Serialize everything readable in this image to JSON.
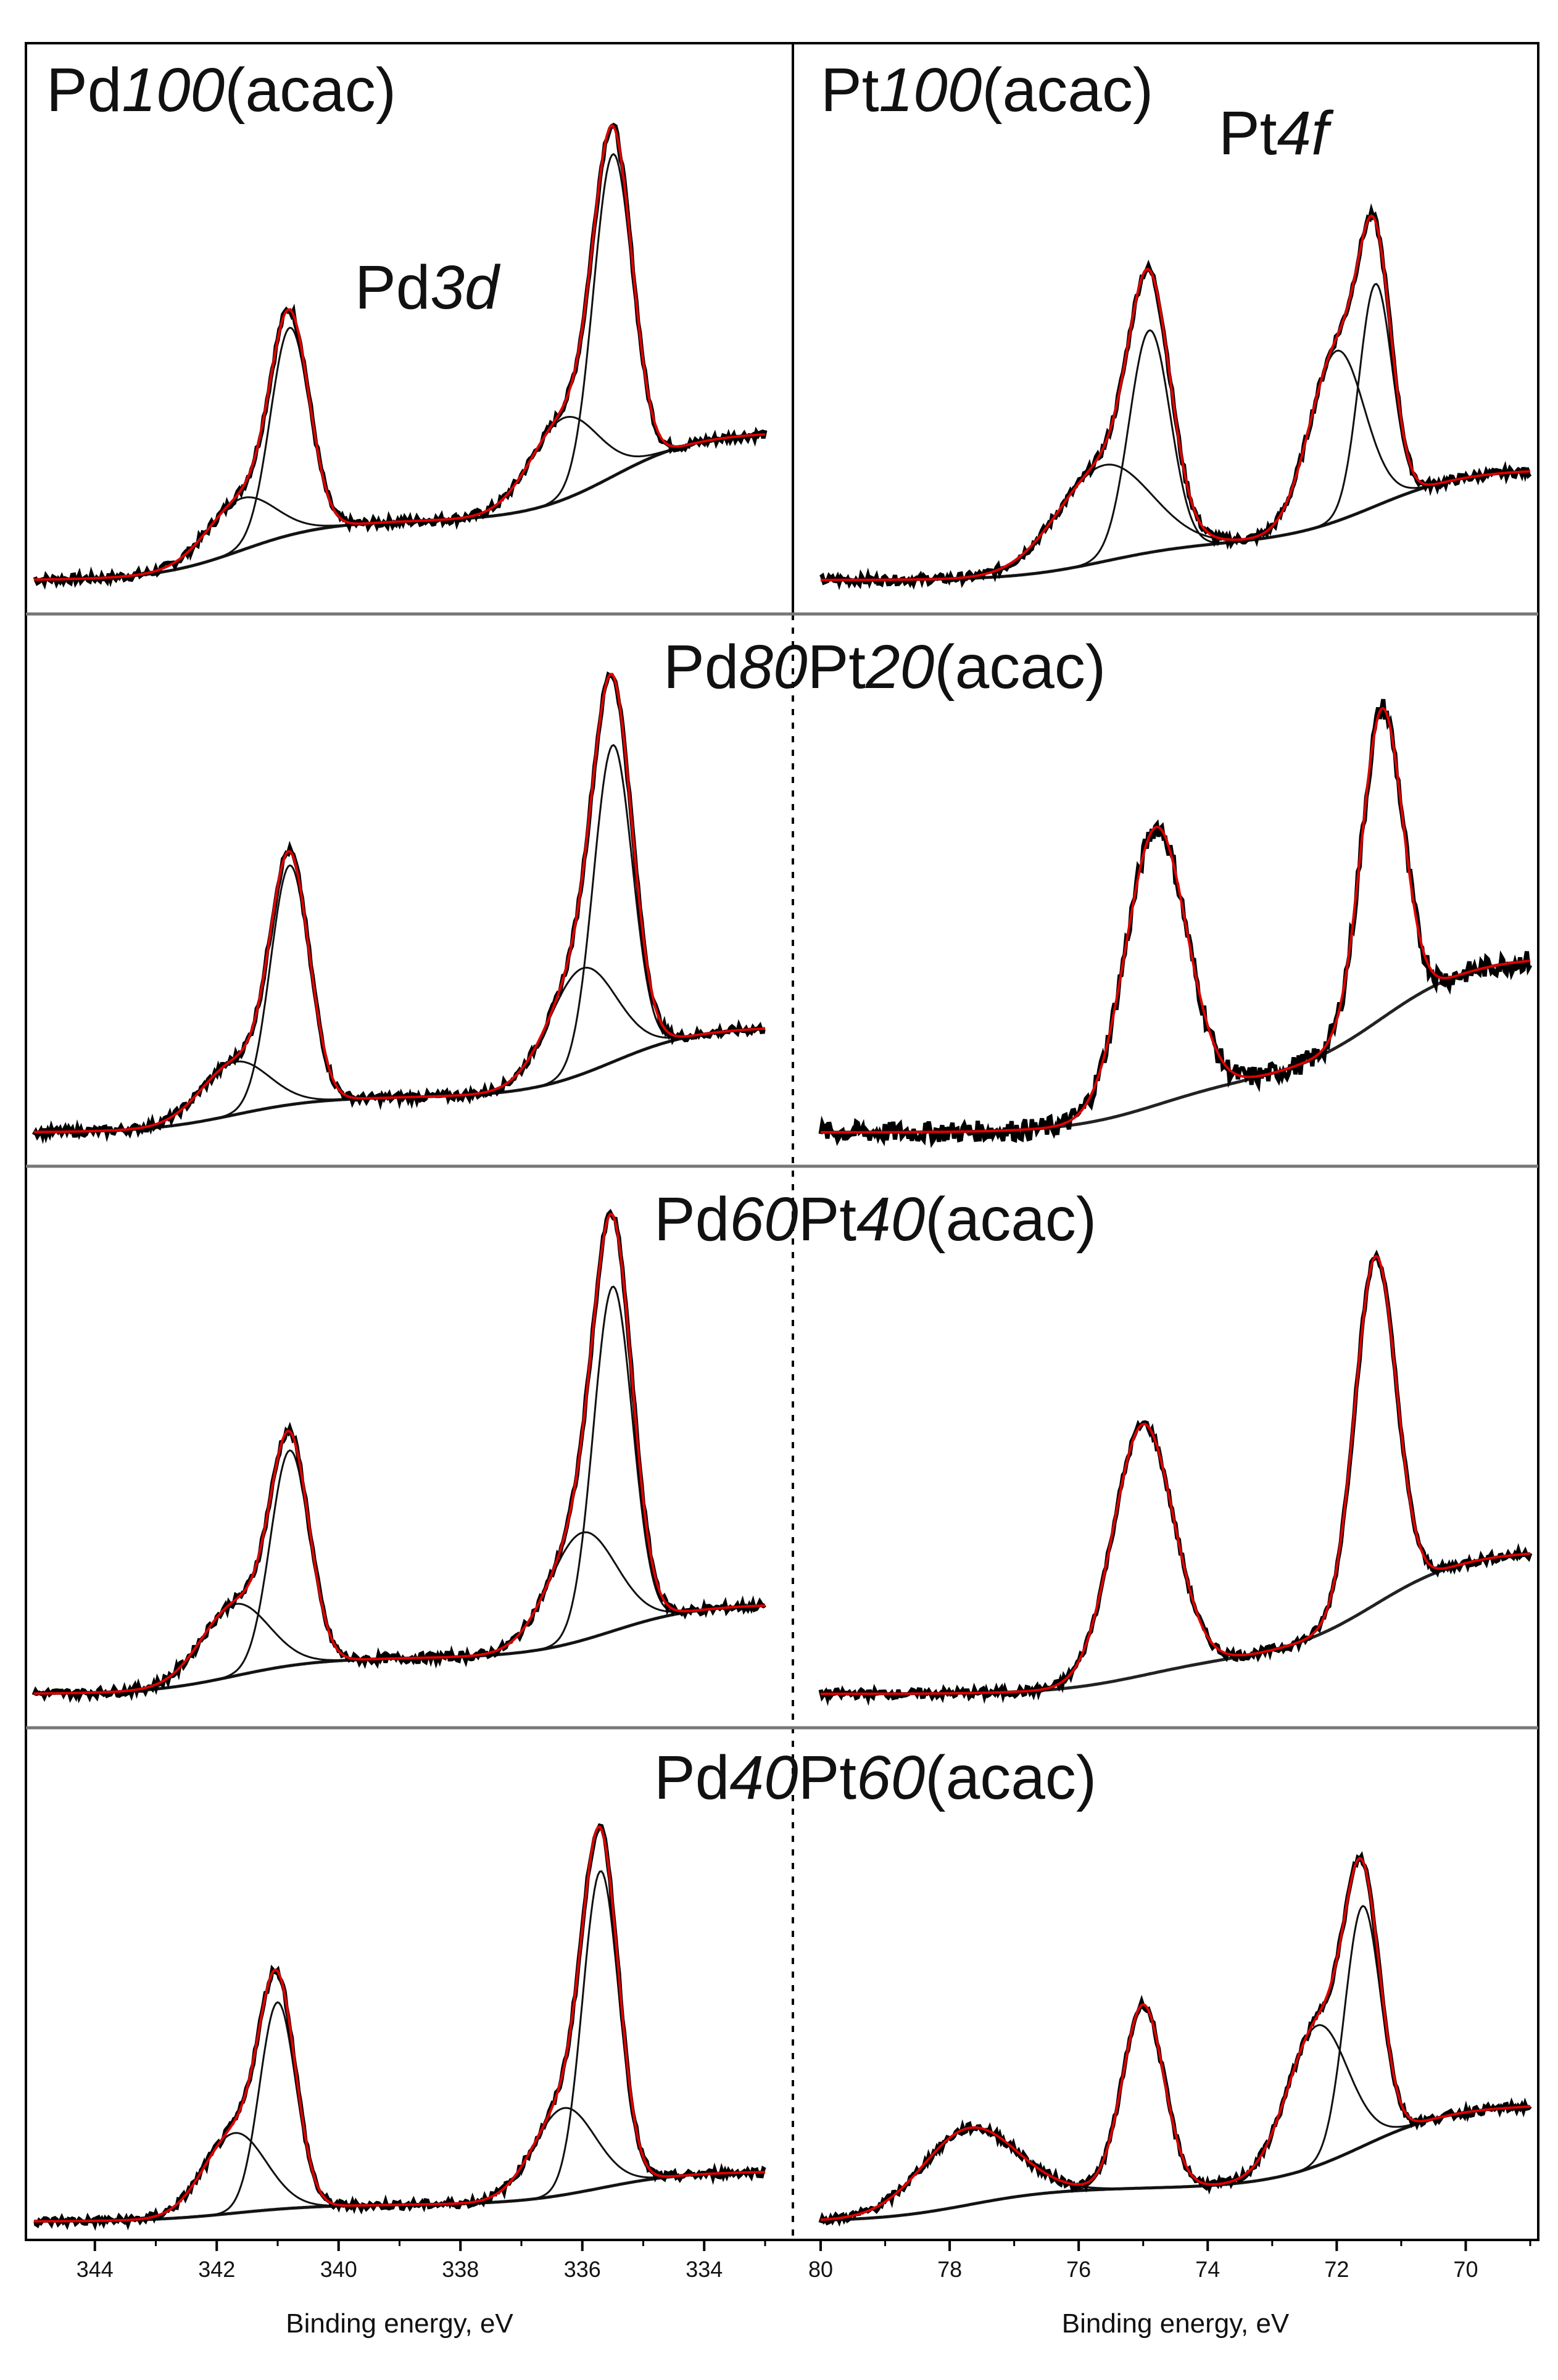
{
  "chart_data": {
    "type": "line",
    "description_free": true,
    "colors": {
      "measured": "#000000",
      "fit": "#e00000",
      "components": "#000000",
      "background": "#000000"
    },
    "xlabel_pd": "Binding energy, eV",
    "xlabel_pt": "Binding energy, eV",
    "pd_axis": {
      "xlim": [
        345,
        333
      ],
      "ticks": [
        "344",
        "342",
        "340",
        "338",
        "336",
        "334"
      ]
    },
    "pt_axis": {
      "xlim": [
        80,
        69
      ],
      "ticks": [
        "80",
        "78",
        "76",
        "74",
        "72",
        "70"
      ]
    },
    "core_labels": {
      "pd_prefix": "Pd",
      "pd_italic": "3d",
      "pt_prefix": "Pt",
      "pt_italic": "4f"
    },
    "samples": [
      {
        "label_parts": [
          [
            "Pd",
            false
          ],
          [
            "100",
            true
          ],
          [
            "(acac)",
            false
          ]
        ],
        "label2_parts": [
          [
            "Pt",
            false
          ],
          [
            "100",
            true
          ],
          [
            "(acac)",
            false
          ]
        ],
        "pd": {
          "ymax": 1.35,
          "background": {
            "left": 0.0,
            "mid": 0.16,
            "right": 0.4
          },
          "peaks": [
            {
              "center": 340.8,
              "height": 0.56,
              "width": 0.75
            },
            {
              "center": 341.6,
              "height": 0.14,
              "width": 1.3
            },
            {
              "center": 335.5,
              "height": 0.87,
              "width": 0.75
            },
            {
              "center": 336.3,
              "height": 0.22,
              "width": 1.3
            }
          ]
        },
        "pt": {
          "ymax": 1.35,
          "background": {
            "left": 0.0,
            "mid": 0.1,
            "right": 0.3
          },
          "peaks": [
            {
              "center": 74.9,
              "height": 0.6,
              "width": 0.75
            },
            {
              "center": 75.6,
              "height": 0.26,
              "width": 1.7
            },
            {
              "center": 71.4,
              "height": 0.6,
              "width": 0.6
            },
            {
              "center": 72.0,
              "height": 0.46,
              "width": 1.0
            }
          ]
        }
      },
      {
        "label_parts": [
          [
            "Pd",
            false
          ],
          [
            "80",
            true
          ],
          [
            "Pt",
            false
          ],
          [
            "20",
            true
          ],
          [
            "(acac)",
            false
          ]
        ],
        "pd": {
          "ymax": 1.35,
          "background": {
            "left": 0.0,
            "mid": 0.1,
            "right": 0.3
          },
          "peaks": [
            {
              "center": 340.8,
              "height": 0.68,
              "width": 0.75
            },
            {
              "center": 341.7,
              "height": 0.15,
              "width": 1.3
            },
            {
              "center": 335.5,
              "height": 0.9,
              "width": 0.75
            },
            {
              "center": 336.0,
              "height": 0.3,
              "width": 1.3
            }
          ]
        },
        "pt": {
          "ymax": 1.35,
          "background": {
            "left": 0.0,
            "mid": 0.15,
            "right": 0.5
          },
          "noise": 0.03,
          "peaks": [
            {
              "center": 74.8,
              "height": 0.79,
              "width": 1.1
            },
            {
              "center": 71.3,
              "height": 0.88,
              "width": 0.75
            }
          ]
        }
      },
      {
        "label_parts": [
          [
            "Pd",
            false
          ],
          [
            "60",
            true
          ],
          [
            "Pt",
            false
          ],
          [
            "40",
            true
          ],
          [
            "(acac)",
            false
          ]
        ],
        "pd": {
          "ymax": 1.35,
          "background": {
            "left": 0.0,
            "mid": 0.1,
            "right": 0.25
          },
          "peaks": [
            {
              "center": 340.8,
              "height": 0.6,
              "width": 0.75
            },
            {
              "center": 341.7,
              "height": 0.2,
              "width": 1.3
            },
            {
              "center": 335.5,
              "height": 0.96,
              "width": 0.75
            },
            {
              "center": 336.0,
              "height": 0.3,
              "width": 1.3
            }
          ]
        },
        "pt": {
          "ymax": 1.35,
          "background": {
            "left": 0.0,
            "mid": 0.1,
            "right": 0.4
          },
          "peaks": [
            {
              "center": 75.0,
              "height": 0.7,
              "width": 1.1
            },
            {
              "center": 71.4,
              "height": 0.97,
              "width": 0.75
            }
          ]
        }
      },
      {
        "label_parts": [
          [
            "Pd",
            false
          ],
          [
            "40",
            true
          ],
          [
            "Pt",
            false
          ],
          [
            "60",
            true
          ],
          [
            "(acac)",
            false
          ]
        ],
        "pd": {
          "ymax": 1.35,
          "background": {
            "left": 0.0,
            "mid": 0.05,
            "right": 0.15
          },
          "peaks": [
            {
              "center": 341.0,
              "height": 0.62,
              "width": 0.7
            },
            {
              "center": 341.7,
              "height": 0.24,
              "width": 1.2
            },
            {
              "center": 335.7,
              "height": 0.95,
              "width": 0.7
            },
            {
              "center": 336.3,
              "height": 0.26,
              "width": 1.2
            }
          ]
        },
        "pt": {
          "ymax": 1.35,
          "background": {
            "left": 0.0,
            "mid": 0.1,
            "right": 0.35
          },
          "peaks": [
            {
              "center": 75.0,
              "height": 0.55,
              "width": 0.75
            },
            {
              "center": 77.7,
              "height": 0.23,
              "width": 1.7
            },
            {
              "center": 71.6,
              "height": 0.72,
              "width": 0.65
            },
            {
              "center": 72.3,
              "height": 0.42,
              "width": 1.1
            }
          ]
        }
      }
    ]
  }
}
